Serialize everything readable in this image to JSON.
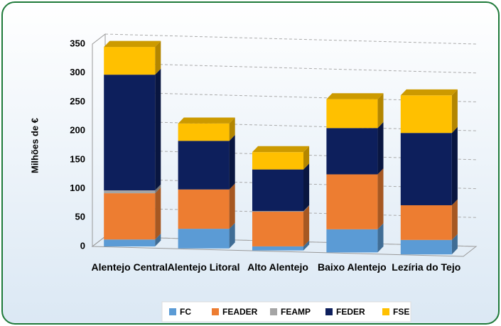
{
  "chart_data": {
    "type": "bar3d_stacked",
    "y_label": "Milhões de €",
    "categories": [
      "Alentejo Central",
      "Alentejo Litoral",
      "Alto Alentejo",
      "Baixo Alentejo",
      "Lezíria do Tejo"
    ],
    "series": [
      {
        "name": "FC",
        "color": "#5b9bd5",
        "values": [
          12,
          34,
          7,
          40,
          25
        ]
      },
      {
        "name": "FEADER",
        "color": "#ed7d31",
        "values": [
          80,
          68,
          60,
          95,
          60
        ]
      },
      {
        "name": "FEAMP",
        "color": "#a5a5a5",
        "values": [
          5,
          0,
          1,
          0,
          0
        ]
      },
      {
        "name": "FEDER",
        "color": "#0d1f5c",
        "values": [
          200,
          84,
          72,
          80,
          125
        ]
      },
      {
        "name": "FSE",
        "color": "#ffc000",
        "values": [
          48,
          30,
          30,
          50,
          65
        ]
      }
    ],
    "ylim": [
      0,
      350
    ],
    "yticks": [
      0,
      50,
      100,
      150,
      200,
      250,
      300,
      350
    ],
    "grid": true,
    "legend": "bottom"
  }
}
